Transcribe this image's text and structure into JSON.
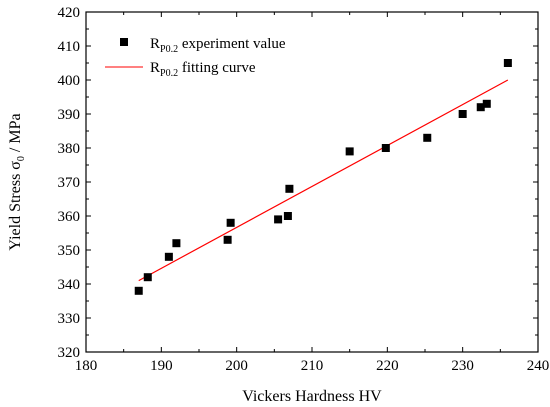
{
  "chart_data": {
    "type": "scatter",
    "xlabel": "Vickers Hardness HV",
    "ylabel_main": "Yield Stress σ",
    "ylabel_sub": "0",
    "ylabel_unit": " / MPa",
    "xlim": [
      180,
      240
    ],
    "ylim": [
      320,
      420
    ],
    "x_ticks": [
      180,
      190,
      200,
      210,
      220,
      230,
      240
    ],
    "y_ticks": [
      320,
      330,
      340,
      350,
      360,
      370,
      380,
      390,
      400,
      410,
      420
    ],
    "grid": false,
    "legend_position": "top-left",
    "series": [
      {
        "name_main": "R",
        "name_sub": "P0.2",
        "name_rest": " experiment value",
        "kind": "scatter",
        "marker": "square",
        "color": "#000000",
        "x": [
          187,
          188.2,
          191,
          192,
          198.8,
          199.2,
          205.5,
          206.8,
          207,
          215,
          219.8,
          225.3,
          230,
          232.4,
          233.2,
          236
        ],
        "y": [
          338,
          342,
          348,
          352,
          353,
          358,
          359,
          360,
          368,
          379,
          380,
          383,
          390,
          392,
          393,
          405
        ]
      },
      {
        "name_main": "R",
        "name_sub": "P0.2",
        "name_rest": " fitting curve",
        "kind": "line",
        "color": "#ff0000",
        "x": [
          187,
          236
        ],
        "y": [
          341,
          400
        ]
      }
    ]
  }
}
